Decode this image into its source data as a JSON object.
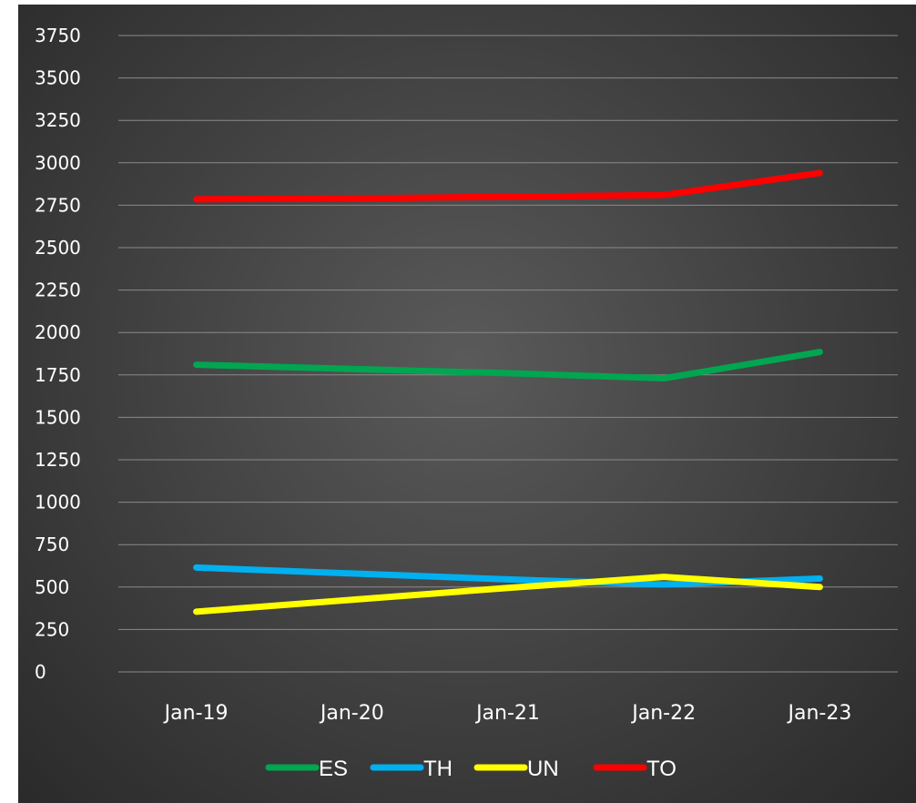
{
  "chart_data": {
    "type": "line",
    "categories": [
      "Jan-19",
      "Jan-20",
      "Jan-21",
      "Jan-22",
      "Jan-23"
    ],
    "ylim": [
      0,
      3750
    ],
    "yticks": [
      0,
      250,
      500,
      750,
      1000,
      1250,
      1500,
      1750,
      2000,
      2250,
      2500,
      2750,
      3000,
      3250,
      3500,
      3750
    ],
    "grid": true,
    "legend_position": "bottom",
    "series": [
      {
        "name": "ES",
        "color": "#00a650",
        "values": [
          1810,
          1785,
          1760,
          1730,
          1885
        ]
      },
      {
        "name": "TH",
        "color": "#00b0f0",
        "values": [
          615,
          580,
          545,
          515,
          550
        ]
      },
      {
        "name": "UN",
        "color": "#ffff00",
        "values": [
          355,
          425,
          495,
          560,
          500
        ]
      },
      {
        "name": "TO",
        "color": "#ff0000",
        "values": [
          2785,
          2790,
          2800,
          2810,
          2940
        ]
      }
    ]
  }
}
